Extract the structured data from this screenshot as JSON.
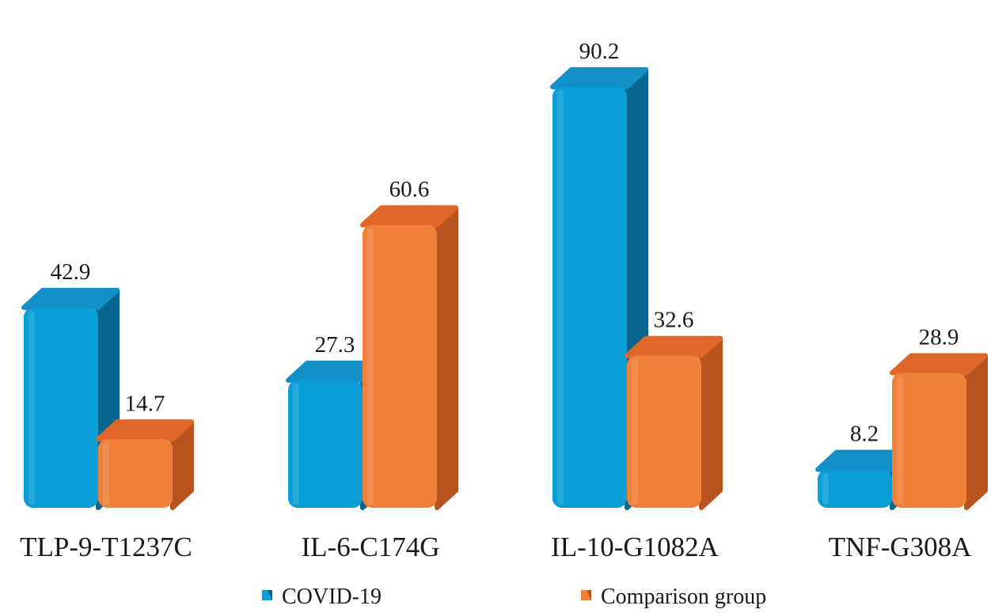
{
  "chart_data": {
    "type": "bar",
    "categories": [
      "TLP-9-T1237C",
      "IL-6-C174G",
      "IL-10-G1082A",
      "TNF-G308A"
    ],
    "series": [
      {
        "name": "COVID-19",
        "values": [
          42.9,
          27.3,
          90.2,
          8.2
        ]
      },
      {
        "name": "Comparison group",
        "values": [
          14.7,
          60.6,
          32.6,
          28.9
        ]
      }
    ],
    "data_labels": [
      [
        "42.9",
        "27.3",
        "90.2",
        "8.2"
      ],
      [
        "14.7",
        "60.6",
        "32.6",
        "28.9"
      ]
    ],
    "ylim": [
      0,
      100
    ],
    "grid": false,
    "legend_position": "bottom",
    "style": "3d-rounded",
    "colors": {
      "COVID-19": {
        "front": "#0a9ed8",
        "side": "#07668f",
        "top": "#1490c8"
      },
      "Comparison group": {
        "front": "#f0803a",
        "side": "#b9541f",
        "top": "#e0672a"
      }
    }
  }
}
